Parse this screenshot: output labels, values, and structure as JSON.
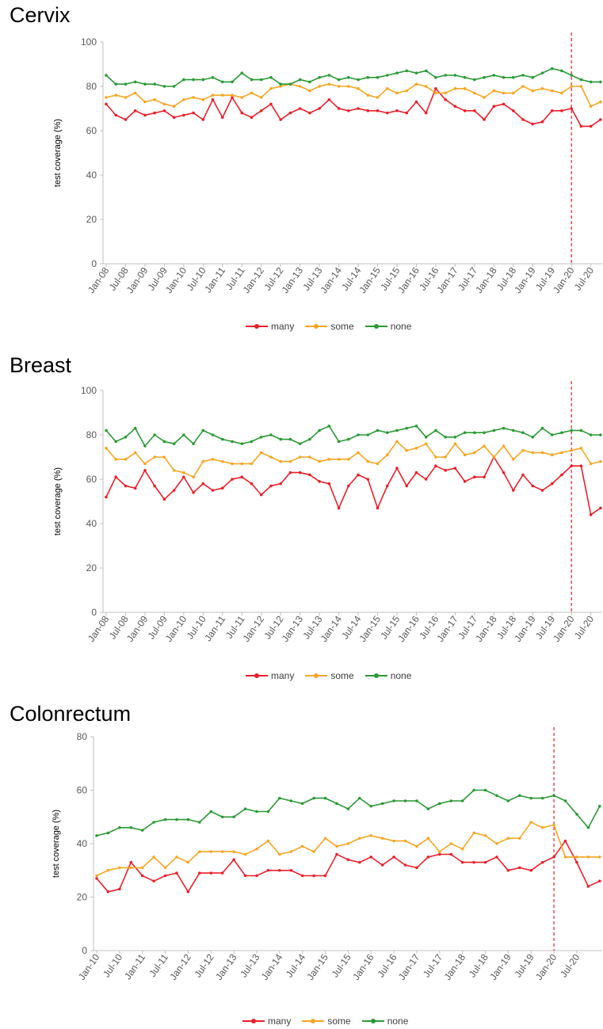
{
  "colors": {
    "many": "#e8202a",
    "some": "#f5a623",
    "none": "#2a9a35",
    "cutoff": "#e8202a"
  },
  "chart_data": [
    {
      "type": "line",
      "title": "Cervix",
      "ylabel": "test coverage (%)",
      "ylim": [
        0,
        100
      ],
      "yticks": [
        0,
        20,
        40,
        60,
        80,
        100
      ],
      "x_labels": [
        "Jan-08",
        "Jul-08",
        "Jan-09",
        "Jul-09",
        "Jan-10",
        "Jul-10",
        "Jan-11",
        "Jul-11",
        "Jan-12",
        "Jul-12",
        "Jan-13",
        "Jul-13",
        "Jan-14",
        "Jul-14",
        "Jan-15",
        "Jul-15",
        "Jan-16",
        "Jul-16",
        "Jan-17",
        "Jul-17",
        "Jan-18",
        "Jul-18",
        "Jan-19",
        "Jul-19",
        "Jan-20",
        "Jul-20"
      ],
      "cutoff_label": "Jan-20",
      "legend_position": "bottom",
      "series": [
        {
          "name": "many",
          "values": [
            72,
            67,
            65,
            69,
            67,
            68,
            69,
            66,
            67,
            68,
            65,
            74,
            66,
            75,
            68,
            66,
            69,
            72,
            65,
            68,
            70,
            68,
            70,
            74,
            70,
            69,
            70,
            69,
            69,
            68,
            69,
            68,
            73,
            68,
            79,
            74,
            71,
            69,
            69,
            65,
            71,
            72,
            69,
            65,
            63,
            64,
            69,
            69,
            70,
            62,
            62,
            65
          ]
        },
        {
          "name": "some",
          "values": [
            75,
            76,
            75,
            77,
            73,
            74,
            72,
            71,
            74,
            75,
            74,
            76,
            76,
            76,
            75,
            77,
            75,
            79,
            80,
            81,
            80,
            78,
            80,
            81,
            80,
            80,
            79,
            76,
            75,
            79,
            77,
            78,
            81,
            80,
            77,
            77,
            79,
            79,
            77,
            75,
            78,
            77,
            77,
            80,
            78,
            79,
            78,
            77,
            80,
            80,
            71,
            73
          ]
        },
        {
          "name": "none",
          "values": [
            85,
            81,
            81,
            82,
            81,
            81,
            80,
            80,
            83,
            83,
            83,
            84,
            82,
            82,
            86,
            83,
            83,
            84,
            81,
            81,
            83,
            82,
            84,
            85,
            83,
            84,
            83,
            84,
            84,
            85,
            86,
            87,
            86,
            87,
            84,
            85,
            85,
            84,
            83,
            84,
            85,
            84,
            84,
            85,
            84,
            86,
            88,
            87,
            85,
            83,
            82,
            82
          ]
        }
      ]
    },
    {
      "type": "line",
      "title": "Breast",
      "ylabel": "test coverage (%)",
      "ylim": [
        0,
        100
      ],
      "yticks": [
        0,
        20,
        40,
        60,
        80,
        100
      ],
      "x_labels": [
        "Jan-08",
        "Jul-08",
        "Jan-09",
        "Jul-09",
        "Jan-10",
        "Jul-10",
        "Jan-11",
        "Jul-11",
        "Jan-12",
        "Jul-12",
        "Jan-13",
        "Jul-13",
        "Jan-14",
        "Jul-14",
        "Jan-15",
        "Jul-15",
        "Jan-16",
        "Jul-16",
        "Jan-17",
        "Jul-17",
        "Jan-18",
        "Jul-18",
        "Jan-19",
        "Jul-19",
        "Jan-20",
        "Jul-20"
      ],
      "cutoff_label": "Jan-20",
      "legend_position": "bottom",
      "series": [
        {
          "name": "many",
          "values": [
            52,
            61,
            57,
            56,
            64,
            57,
            51,
            55,
            61,
            54,
            58,
            55,
            56,
            60,
            61,
            58,
            53,
            57,
            58,
            63,
            63,
            62,
            59,
            58,
            47,
            57,
            62,
            60,
            47,
            57,
            65,
            57,
            63,
            60,
            66,
            64,
            65,
            59,
            61,
            61,
            70,
            63,
            55,
            62,
            57,
            55,
            58,
            62,
            66,
            66,
            44,
            47
          ]
        },
        {
          "name": "some",
          "values": [
            74,
            69,
            69,
            72,
            67,
            70,
            70,
            64,
            63,
            61,
            68,
            69,
            68,
            67,
            67,
            67,
            72,
            70,
            68,
            68,
            70,
            70,
            68,
            69,
            69,
            69,
            72,
            68,
            67,
            71,
            77,
            73,
            74,
            76,
            70,
            70,
            76,
            71,
            72,
            75,
            70,
            75,
            69,
            73,
            72,
            72,
            71,
            72,
            73,
            74,
            67,
            68
          ]
        },
        {
          "name": "none",
          "values": [
            82,
            77,
            79,
            83,
            75,
            80,
            77,
            76,
            80,
            76,
            82,
            80,
            78,
            77,
            76,
            77,
            79,
            80,
            78,
            78,
            76,
            78,
            82,
            84,
            77,
            78,
            80,
            80,
            82,
            81,
            82,
            83,
            84,
            79,
            82,
            79,
            79,
            81,
            81,
            81,
            82,
            83,
            82,
            81,
            79,
            83,
            80,
            81,
            82,
            82,
            80,
            80
          ]
        }
      ]
    },
    {
      "type": "line",
      "title": "Colonrectum",
      "ylabel": "test coverage (%)",
      "ylim": [
        0,
        80
      ],
      "yticks": [
        0,
        20,
        40,
        60,
        80
      ],
      "x_labels": [
        "Jan-10",
        "Jul-10",
        "Jan-11",
        "Jul-11",
        "Jan-12",
        "Jul-12",
        "Jan-13",
        "Jul-13",
        "Jan-14",
        "Jul-14",
        "Jan-15",
        "Jul-15",
        "Jan-16",
        "Jul-16",
        "Jan-17",
        "Jul-17",
        "Jan-18",
        "Jul-18",
        "Jan-19",
        "Jul-19",
        "Jan-20",
        "Jul-20"
      ],
      "cutoff_label": "Jan-20",
      "legend_position": "bottom",
      "series": [
        {
          "name": "many",
          "values": [
            27,
            22,
            23,
            33,
            28,
            26,
            28,
            29,
            22,
            29,
            29,
            29,
            34,
            28,
            28,
            30,
            30,
            30,
            28,
            28,
            28,
            36,
            34,
            33,
            35,
            32,
            35,
            32,
            31,
            35,
            36,
            36,
            33,
            33,
            33,
            35,
            30,
            31,
            30,
            33,
            35,
            41,
            33,
            24,
            26
          ]
        },
        {
          "name": "some",
          "values": [
            28,
            30,
            31,
            31,
            31,
            35,
            31,
            35,
            33,
            37,
            37,
            37,
            37,
            36,
            38,
            41,
            36,
            37,
            39,
            37,
            42,
            39,
            40,
            42,
            43,
            42,
            41,
            41,
            39,
            42,
            37,
            40,
            38,
            44,
            43,
            40,
            42,
            42,
            48,
            46,
            47,
            35,
            35,
            35,
            35
          ]
        },
        {
          "name": "none",
          "values": [
            43,
            44,
            46,
            46,
            45,
            48,
            49,
            49,
            49,
            48,
            52,
            50,
            50,
            53,
            52,
            52,
            57,
            56,
            55,
            57,
            57,
            55,
            53,
            57,
            54,
            55,
            56,
            56,
            56,
            53,
            55,
            56,
            56,
            60,
            60,
            58,
            56,
            58,
            57,
            57,
            58,
            56,
            51,
            46,
            54
          ]
        }
      ]
    }
  ]
}
